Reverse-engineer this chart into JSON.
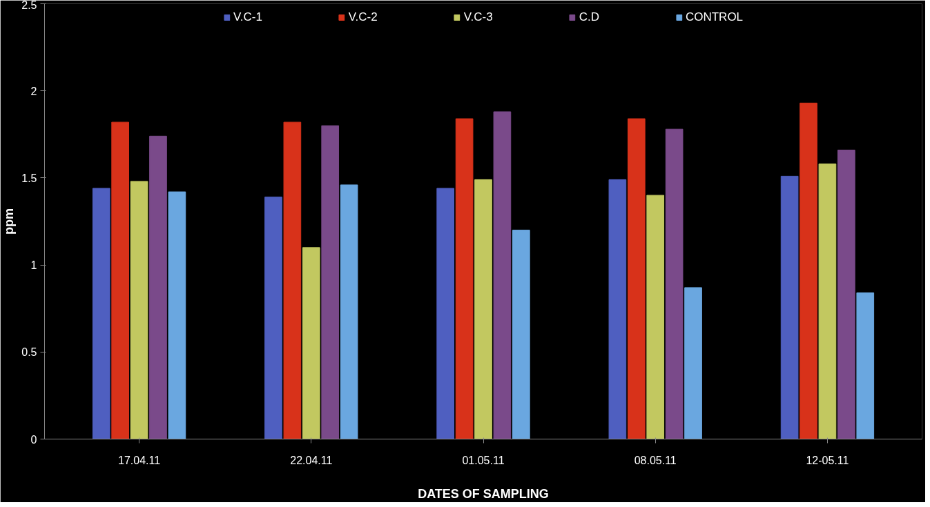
{
  "chart_data": {
    "type": "bar",
    "xlabel": "DATES OF SAMPLING",
    "ylabel": "ppm",
    "categories": [
      "17.04.11",
      "22.04.11",
      "01.05.11",
      "08.05.11",
      "12-05.11"
    ],
    "series": [
      {
        "name": "V.C-1",
        "color": "#4f5fc0",
        "values": [
          1.44,
          1.39,
          1.44,
          1.49,
          1.51
        ]
      },
      {
        "name": "V.C-2",
        "color": "#d8321a",
        "values": [
          1.82,
          1.82,
          1.84,
          1.84,
          1.93
        ]
      },
      {
        "name": "V.C-3",
        "color": "#c2c860",
        "values": [
          1.48,
          1.1,
          1.49,
          1.4,
          1.58
        ]
      },
      {
        "name": "C.D",
        "color": "#7a4a8a",
        "values": [
          1.74,
          1.8,
          1.88,
          1.78,
          1.66
        ]
      },
      {
        "name": "CONTROL",
        "color": "#6aa7e0",
        "values": [
          1.42,
          1.46,
          1.2,
          0.87,
          0.84
        ]
      }
    ],
    "ylim": [
      0,
      2.5
    ],
    "yticks": [
      0,
      0.5,
      1,
      1.5,
      2,
      2.5
    ],
    "grid": false,
    "legend": "top"
  }
}
